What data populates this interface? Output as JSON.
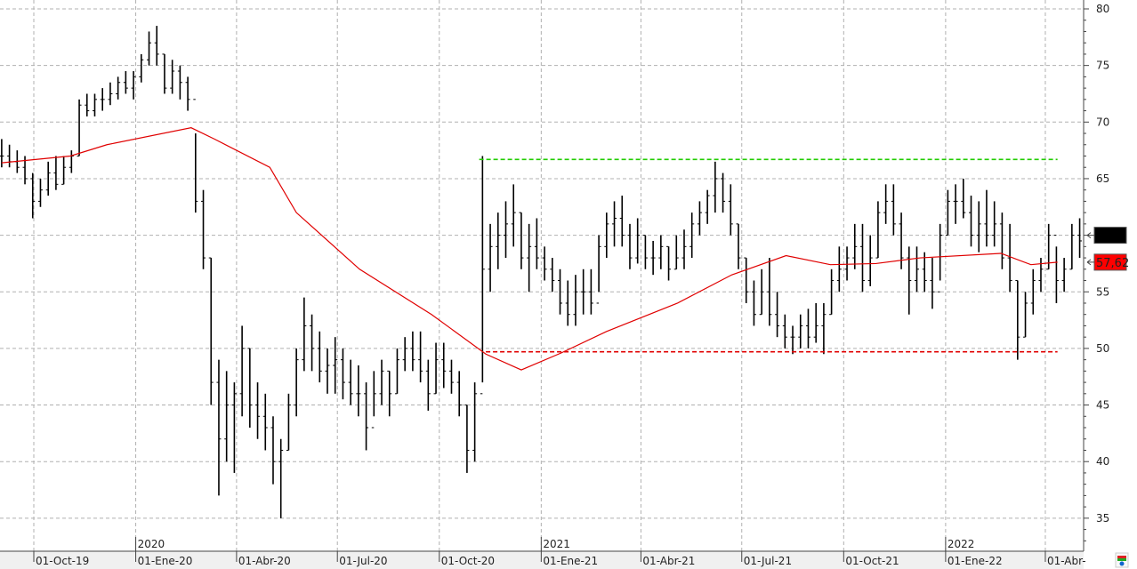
{
  "chart_data": {
    "type": "ohlc",
    "title": "",
    "xlabel": "",
    "ylabel": "",
    "ylim": [
      32,
      81
    ],
    "grid": true,
    "y_ticks": [
      35,
      40,
      45,
      50,
      55,
      60,
      65,
      70,
      75,
      80
    ],
    "y_tick_labels": [
      "35",
      "40",
      "45",
      "50",
      "55",
      "60",
      "65",
      "70",
      "75",
      "80"
    ],
    "x_ticks": [
      {
        "date": "2019-10-01",
        "label": "01-Oct-19"
      },
      {
        "date": "2020-01-01",
        "label": "01-Ene-20",
        "year": "2020"
      },
      {
        "date": "2020-04-01",
        "label": "01-Abr-20"
      },
      {
        "date": "2020-07-01",
        "label": "01-Jul-20"
      },
      {
        "date": "2020-10-01",
        "label": "01-Oct-20"
      },
      {
        "date": "2021-01-01",
        "label": "01-Ene-21",
        "year": "2021"
      },
      {
        "date": "2021-04-01",
        "label": "01-Abr-21"
      },
      {
        "date": "2021-07-01",
        "label": "01-Jul-21"
      },
      {
        "date": "2021-10-01",
        "label": "01-Oct-21"
      },
      {
        "date": "2022-01-01",
        "label": "01-Ene-22",
        "year": "2022"
      },
      {
        "date": "2022-04-01",
        "label": "01-Abr-"
      }
    ],
    "bars": {
      "start_date": "2019-09-02",
      "interval_days": 7,
      "high": [
        68.5,
        68,
        67.5,
        67,
        65.5,
        65,
        66.5,
        67,
        67,
        67.5,
        72,
        72.5,
        72.5,
        73,
        73.5,
        74,
        74.5,
        74.5,
        76,
        78,
        78.5,
        76,
        75.5,
        75,
        74,
        69,
        64,
        58,
        49,
        48,
        47,
        52,
        50,
        47,
        46,
        44,
        42,
        46,
        50,
        54.5,
        53,
        51.5,
        50,
        51,
        50,
        49,
        48.5,
        47,
        48,
        49,
        48,
        50,
        51,
        51.5,
        51.5,
        49,
        50.5,
        50.5,
        49,
        48,
        45,
        47,
        67,
        61,
        62,
        63,
        64.5,
        62,
        61,
        61.5,
        59,
        58,
        57,
        56,
        56.5,
        57,
        57,
        60,
        62,
        63,
        63.5,
        61,
        61.5,
        60,
        59.5,
        60,
        59,
        60,
        60.5,
        62,
        63,
        64,
        66.5,
        65.5,
        64.5,
        61,
        58,
        56,
        57,
        58,
        55,
        53,
        52,
        53,
        53.5,
        54,
        54,
        57,
        59,
        59,
        61,
        61,
        60,
        63,
        64.5,
        64.5,
        62,
        59,
        59,
        58.5,
        58,
        61,
        64,
        64.5,
        65,
        63.5,
        63,
        64,
        63,
        62,
        61,
        56,
        55,
        57,
        58,
        61,
        59,
        58,
        61,
        61.5
      ],
      "low": [
        66,
        66,
        65.5,
        64.5,
        61.5,
        62.5,
        63.5,
        64,
        64.5,
        65.5,
        67,
        70.5,
        70.5,
        71,
        71.5,
        72,
        72.5,
        72,
        73.5,
        75,
        75,
        72.5,
        72.5,
        72,
        71,
        62,
        57,
        45,
        37,
        40,
        39,
        44,
        43,
        42,
        41,
        38,
        35,
        41,
        44,
        48,
        48,
        47,
        46,
        46,
        45.5,
        45,
        44,
        41,
        44,
        45,
        44,
        46,
        48,
        48,
        47,
        44.5,
        46,
        46.5,
        46,
        44,
        39,
        40,
        47,
        55,
        57,
        58,
        59,
        57,
        55,
        57,
        56,
        55,
        53,
        52,
        52,
        53,
        53,
        55,
        58,
        59,
        59,
        57,
        57.5,
        57,
        56.5,
        57,
        56,
        57,
        57,
        58,
        60,
        61,
        62,
        62,
        60,
        57,
        54,
        52,
        53,
        52,
        51,
        50,
        49.5,
        50,
        50,
        50.5,
        49.5,
        53,
        55,
        56,
        57,
        55,
        55.5,
        58,
        61,
        60,
        57,
        53,
        55,
        55,
        53.5,
        56,
        60,
        61,
        61.5,
        59,
        58.5,
        59,
        59,
        57,
        55,
        49,
        51,
        53,
        55,
        57,
        54,
        55,
        57,
        58
      ],
      "close": [
        67,
        66.5,
        66,
        65,
        63,
        64,
        65.5,
        64.5,
        66,
        67,
        71.5,
        71,
        72,
        72,
        72.5,
        73.5,
        73,
        74,
        75.5,
        77,
        76,
        73,
        74.5,
        73.5,
        72,
        63,
        58,
        47,
        42,
        45,
        46,
        50,
        45,
        44,
        43,
        40,
        41,
        45,
        49,
        52,
        50,
        48,
        48.5,
        49,
        47,
        46,
        46,
        43,
        46,
        48,
        46,
        49,
        50,
        49,
        48,
        46,
        49,
        48,
        47,
        45,
        41,
        46,
        57,
        59,
        60,
        61,
        62,
        58,
        59,
        58,
        57,
        56,
        54,
        53,
        55,
        55,
        54,
        59,
        61,
        61.5,
        60,
        58,
        60,
        58,
        58,
        59,
        57,
        58,
        59,
        61,
        62,
        63.5,
        65,
        63,
        61,
        58,
        55,
        53,
        55,
        53,
        52,
        51,
        51,
        52,
        51,
        52,
        53,
        56,
        57,
        58,
        59,
        56,
        58,
        62,
        63,
        61,
        58,
        56,
        57,
        56,
        55,
        60,
        63,
        63,
        62,
        60,
        61,
        60,
        61,
        58,
        56,
        51,
        54,
        56,
        57,
        60,
        56,
        57,
        60,
        59.5
      ]
    },
    "moving_average": {
      "color": "#e00000",
      "points": [
        [
          "2019-09-02",
          66.4
        ],
        [
          "2019-11-03",
          67.0
        ],
        [
          "2019-12-06",
          68.0
        ],
        [
          "2020-02-20",
          69.5
        ],
        [
          "2020-03-12",
          68.5
        ],
        [
          "2020-05-01",
          66.0
        ],
        [
          "2020-05-25",
          62.0
        ],
        [
          "2020-07-21",
          57.0
        ],
        [
          "2020-09-24",
          53.0
        ],
        [
          "2020-11-12",
          49.5
        ],
        [
          "2020-12-14",
          48.1
        ],
        [
          "2021-01-19",
          49.6
        ],
        [
          "2021-03-01",
          51.5
        ],
        [
          "2021-05-04",
          54.0
        ],
        [
          "2021-06-22",
          56.5
        ],
        [
          "2021-08-10",
          58.2
        ],
        [
          "2021-09-19",
          57.4
        ],
        [
          "2021-10-30",
          57.5
        ],
        [
          "2021-12-09",
          58.0
        ],
        [
          "2022-02-20",
          58.4
        ],
        [
          "2022-03-19",
          57.4
        ],
        [
          "2022-04-12",
          57.62
        ]
      ]
    },
    "levels": [
      {
        "name": "resistance",
        "value": 66.7,
        "from": "2020-11-06",
        "to": "2022-04-12",
        "color": "#22cc00",
        "style": "dashed"
      },
      {
        "name": "support",
        "value": 49.7,
        "from": "2020-11-12",
        "to": "2022-04-12",
        "color": "#e00000",
        "style": "dashed"
      }
    ],
    "price_labels": [
      {
        "value": 60.0,
        "text": "",
        "bg": "#000000"
      },
      {
        "value": 57.62,
        "text": "57,62",
        "bg": "#ff0000"
      }
    ]
  },
  "colors": {
    "bars": "#000000",
    "grid": "#b0b0b0",
    "axis_band": "#f0f0f0"
  },
  "corner_icon": "flag-icon"
}
